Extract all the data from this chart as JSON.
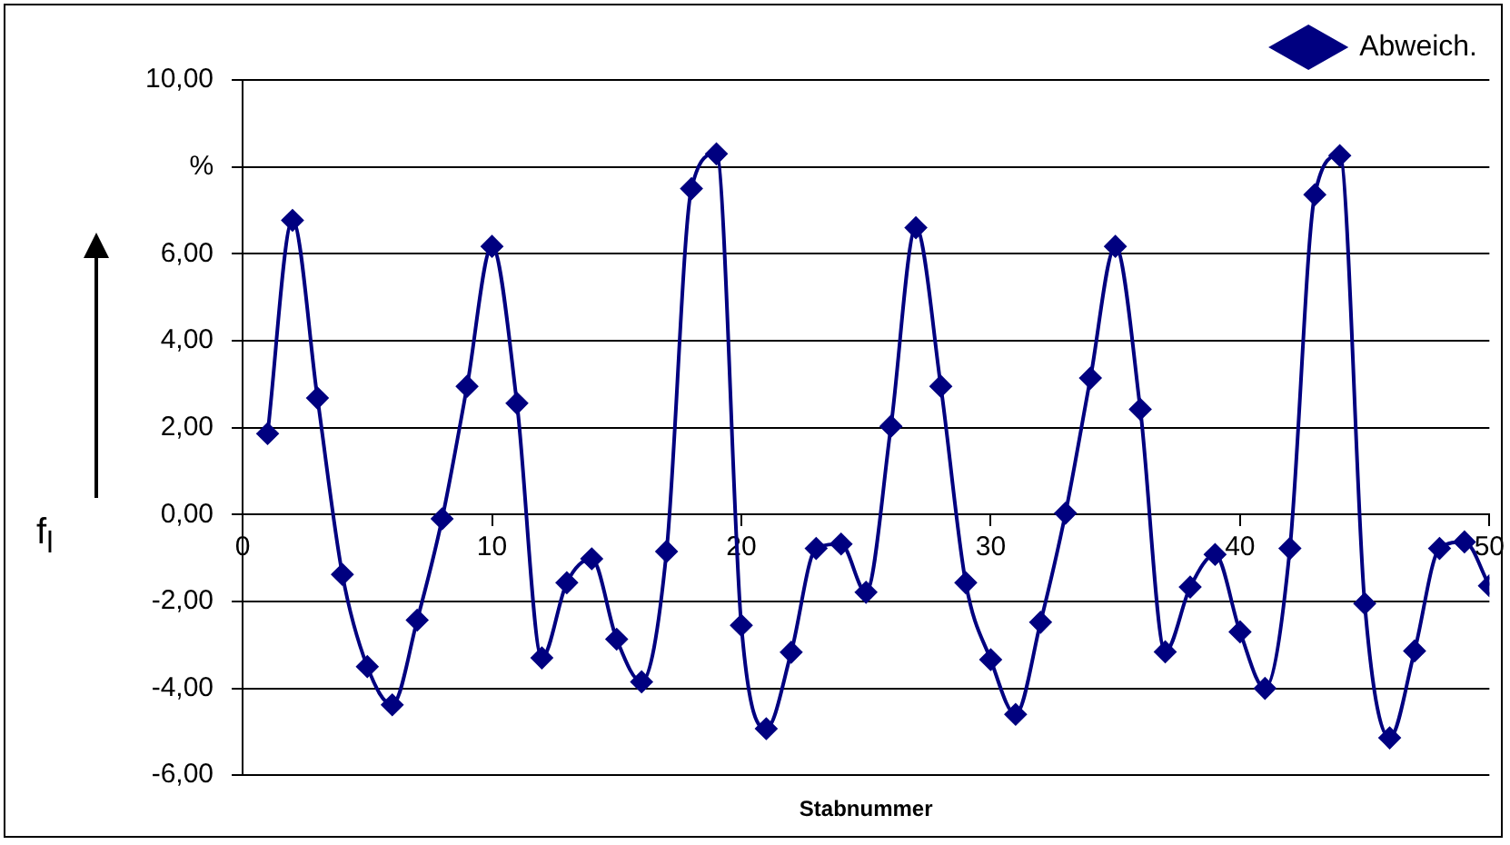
{
  "chart_data": {
    "type": "line",
    "xlabel": "Stabnummer",
    "ylabel": "f$_{l}$",
    "x": [
      1,
      2,
      3,
      4,
      5,
      6,
      7,
      8,
      9,
      10,
      11,
      12,
      13,
      14,
      15,
      16,
      17,
      18,
      19,
      20,
      21,
      22,
      23,
      24,
      25,
      26,
      27,
      28,
      29,
      30,
      31,
      32,
      33,
      34,
      35,
      36,
      37,
      38,
      39,
      40,
      41,
      42,
      43,
      44,
      45,
      46,
      47,
      48,
      49,
      50
    ],
    "series": [
      {
        "name": "Abweich.",
        "color": "#000080",
        "values": [
          1.86,
          6.77,
          2.68,
          -1.38,
          -3.5,
          -4.38,
          -2.43,
          -0.1,
          2.95,
          6.17,
          2.56,
          -3.3,
          -1.57,
          -1.02,
          -2.87,
          -3.85,
          -0.85,
          7.5,
          8.3,
          -2.55,
          -4.93,
          -3.17,
          -0.78,
          -0.68,
          -1.79,
          2.03,
          6.6,
          2.95,
          -1.57,
          -3.34,
          -4.6,
          -2.48,
          0.03,
          3.14,
          6.17,
          2.42,
          -3.16,
          -1.67,
          -0.92,
          -2.7,
          -4.0,
          -0.78,
          7.36,
          8.26,
          -2.05,
          -5.14,
          -3.14,
          -0.78,
          -0.63,
          -1.64
        ]
      }
    ],
    "xlim": [
      0,
      50
    ],
    "xticks": [
      0,
      10,
      20,
      30,
      40,
      50
    ],
    "ylim": [
      -6,
      10
    ],
    "yticks": [
      {
        "value": -6,
        "label": "-6,00"
      },
      {
        "value": -4,
        "label": "-4,00"
      },
      {
        "value": -2,
        "label": "-2,00"
      },
      {
        "value": 0,
        "label": "0,00"
      },
      {
        "value": 2,
        "label": "2,00"
      },
      {
        "value": 4,
        "label": "4,00"
      },
      {
        "value": 6,
        "label": "6,00"
      },
      {
        "value": 8,
        "label": "%"
      },
      {
        "value": 10,
        "label": "10,00"
      }
    ],
    "grid": "y",
    "legend": "top right",
    "marker": "diamond",
    "line_style": "solid"
  }
}
